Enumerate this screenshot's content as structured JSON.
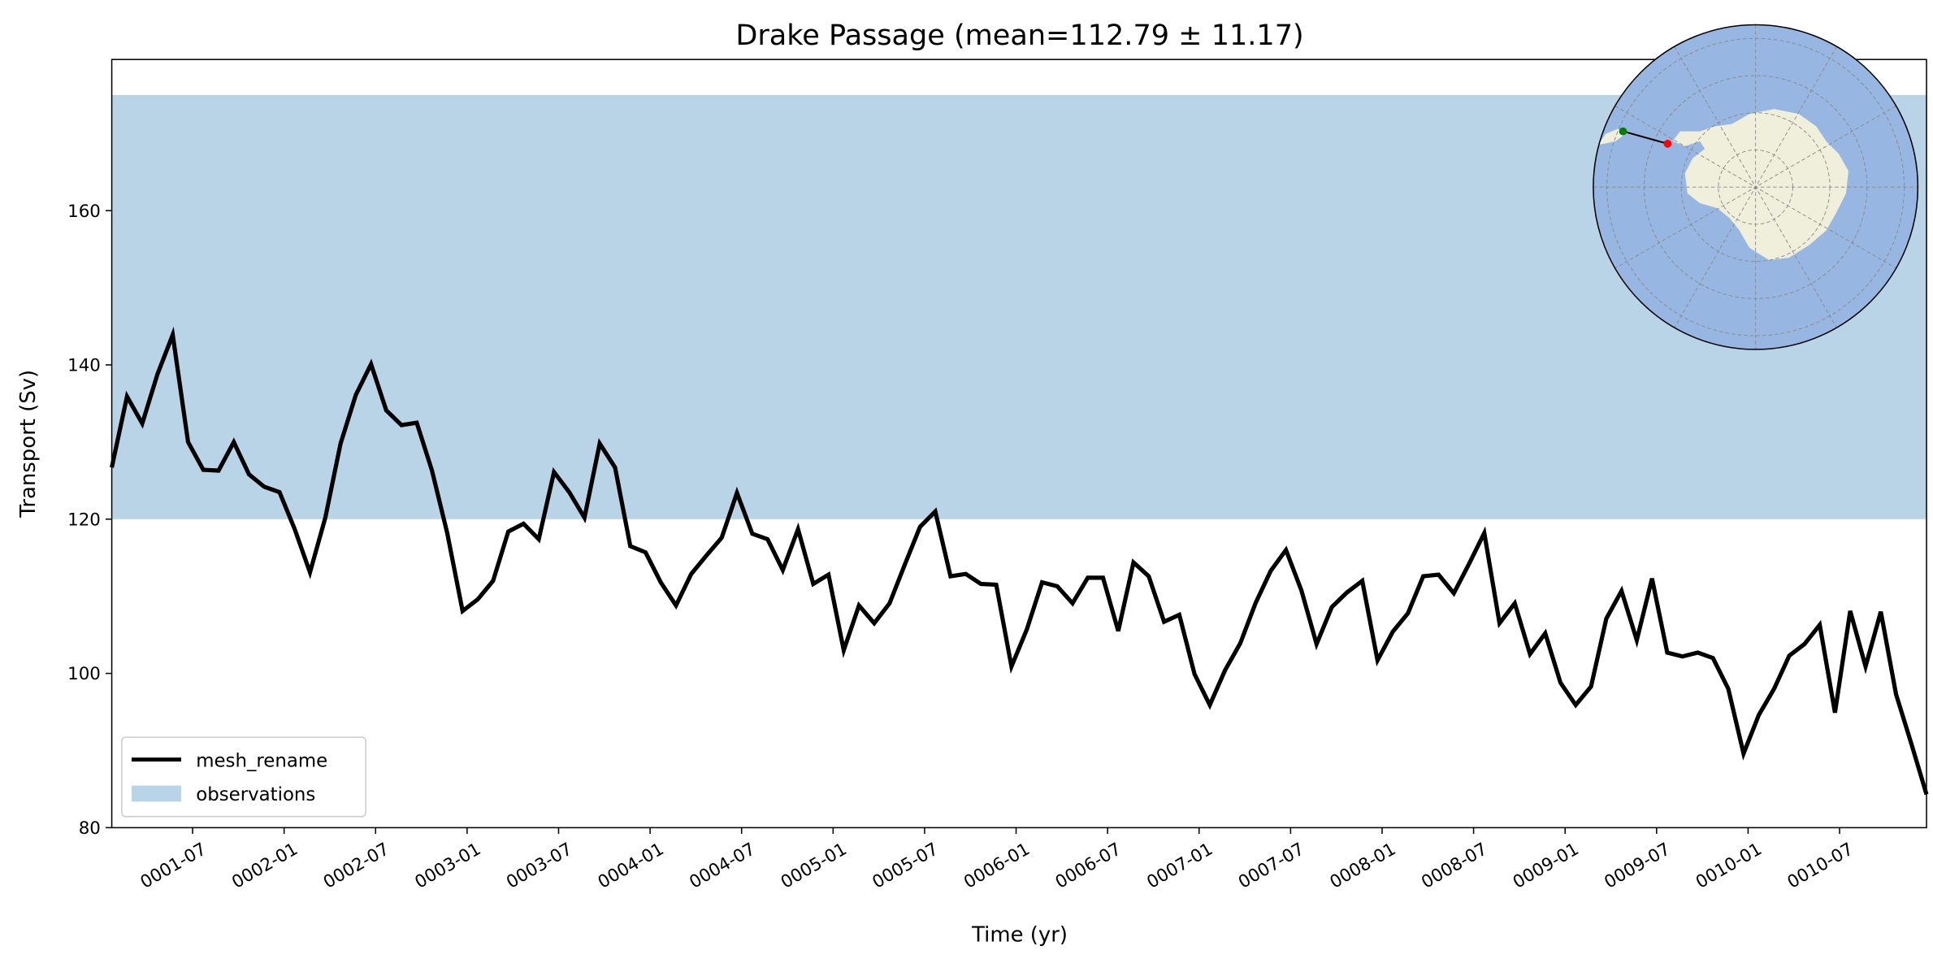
{
  "chart_data": {
    "type": "line",
    "title": "Drake Passage (mean=112.79 ± 11.17)",
    "xlabel": "Time (yr)",
    "ylabel": "Transport (Sv)",
    "ylim": [
      80,
      179.6
    ],
    "yticks": [
      80,
      100,
      120,
      140,
      160
    ],
    "time_start": "0001-01",
    "frequency": "monthly",
    "xtick_labels": [
      "0001-07",
      "0002-01",
      "0002-07",
      "0003-01",
      "0003-07",
      "0004-01",
      "0004-07",
      "0005-01",
      "0005-07",
      "0006-01",
      "0006-07",
      "0007-01",
      "0007-07",
      "0008-01",
      "0008-07",
      "0009-01",
      "0009-07",
      "0010-01",
      "0010-07"
    ],
    "observations": {
      "name": "observations",
      "low": 120,
      "high": 175,
      "color": "#bad4e7"
    },
    "series": [
      {
        "name": "mesh_rename",
        "color": "#000000",
        "values": [
          126.7,
          135.9,
          132.4,
          138.8,
          143.9,
          130.0,
          126.4,
          126.3,
          130.0,
          125.8,
          124.2,
          123.5,
          118.7,
          113.1,
          120.2,
          129.8,
          136.1,
          140.1,
          134.1,
          132.2,
          132.5,
          126.3,
          118.2,
          108.1,
          109.6,
          112.0,
          118.4,
          119.4,
          117.4,
          126.1,
          123.5,
          120.2,
          129.8,
          126.7,
          116.5,
          115.7,
          111.8,
          108.8,
          112.9,
          115.3,
          117.6,
          123.4,
          118.1,
          117.4,
          113.4,
          118.7,
          111.6,
          112.8,
          103.0,
          108.8,
          106.5,
          109.1,
          114.1,
          119.0,
          121.0,
          112.6,
          112.9,
          111.6,
          111.5,
          100.9,
          105.7,
          111.8,
          111.3,
          109.1,
          112.4,
          112.4,
          105.5,
          114.4,
          112.6,
          106.7,
          107.6,
          99.9,
          95.9,
          100.4,
          103.9,
          109.1,
          113.3,
          116.0,
          110.8,
          103.8,
          108.6,
          110.5,
          112.0,
          101.7,
          105.4,
          107.8,
          112.6,
          112.8,
          110.4,
          114.2,
          118.2,
          106.5,
          109.1,
          102.5,
          105.2,
          98.8,
          95.9,
          98.3,
          107.1,
          110.7,
          104.3,
          112.3,
          102.7,
          102.2,
          102.7,
          102.0,
          98.0,
          89.6,
          94.6,
          98.0,
          102.3,
          103.8,
          106.3,
          94.9,
          108.1,
          100.9,
          108.0,
          97.3,
          90.9,
          84.3
        ]
      }
    ],
    "legend": {
      "placement": "lower-left",
      "entries": [
        "mesh_rename",
        "observations"
      ]
    },
    "inset_map": {
      "projection": "south-polar",
      "ocean_color": "#97b6e1",
      "land_color": "#efefdb",
      "section_start_color": "#008000",
      "section_end_color": "#ff0000"
    }
  }
}
